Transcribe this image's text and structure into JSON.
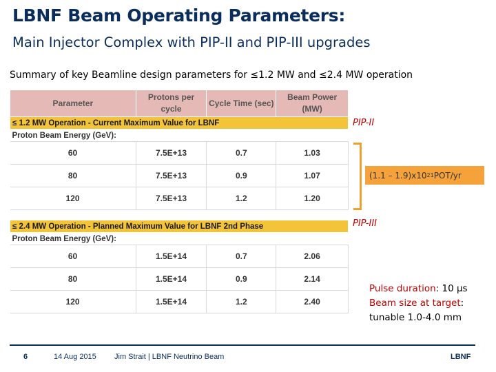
{
  "title": "LBNF Beam Operating Parameters:",
  "subtitle": "Main Injector Complex with PIP-II and PIP-III upgrades",
  "summary": "Summary of key Beamline design parameters for  ≤1.2 MW and ≤2.4 MW operation",
  "table": {
    "headers": [
      "Parameter",
      "Protons per cycle",
      "Cycle Time (sec)",
      "Beam Power (MW)"
    ],
    "header_lines": [
      [
        "Parameter"
      ],
      [
        "Protons per",
        "cycle"
      ],
      [
        "Cycle Time (sec)"
      ],
      [
        "Beam Power",
        "(MW)"
      ]
    ],
    "energy_label": "Proton Beam Energy (GeV):",
    "phase1": {
      "label": "≤ 1.2 MW Operation - Current Maximum Value for LBNF",
      "rows": [
        [
          "60",
          "7.5E+13",
          "0.7",
          "1.03"
        ],
        [
          "80",
          "7.5E+13",
          "0.9",
          "1.07"
        ],
        [
          "120",
          "7.5E+13",
          "1.2",
          "1.20"
        ]
      ]
    },
    "phase2": {
      "label": "≤ 2.4 MW Operation - Planned Maximum Value for LBNF 2nd Phase",
      "rows": [
        [
          "60",
          "1.5E+14",
          "0.7",
          "2.06"
        ],
        [
          "80",
          "1.5E+14",
          "0.9",
          "2.14"
        ],
        [
          "120",
          "1.5E+14",
          "1.2",
          "2.40"
        ]
      ]
    }
  },
  "annotations": {
    "pip2": "PIP-II",
    "pip3": "PIP-III",
    "pot_prefix": "(1.1 – 1.9)x10",
    "pot_exp": "21",
    "pot_suffix": " POT/yr",
    "pulse_label": "Pulse duration",
    "pulse_value": ": 10 μs",
    "beam_label": "Beam size at target",
    "beam_value": ":",
    "beam_range": "tunable 1.0-4.0 mm"
  },
  "footer": {
    "page": "6",
    "date": "14 Aug 2015",
    "author": "Jim Strait | LBNF Neutrino Beam",
    "logo": "LBNF"
  },
  "colors": {
    "title": "#0a2d5c",
    "header_bg": "#e5b9b5",
    "phase_bg": "#f3c33a",
    "accent_red": "#c00000",
    "orange": "#f5a23a"
  }
}
